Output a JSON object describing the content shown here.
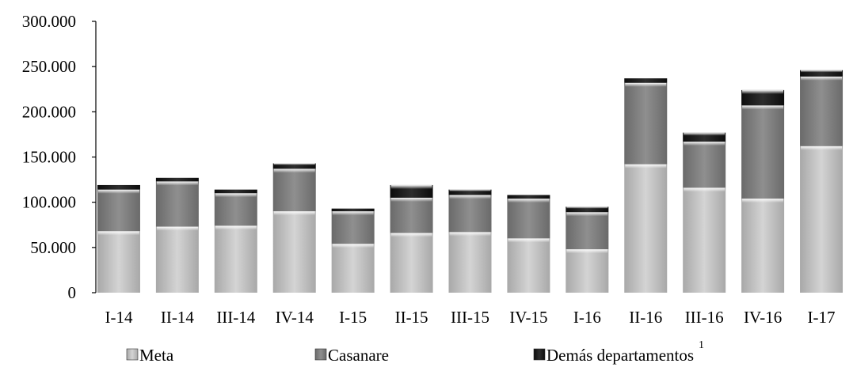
{
  "chart_data": {
    "type": "bar",
    "stacked": true,
    "categories": [
      "I-14",
      "II-14",
      "III-14",
      "IV-14",
      "I-15",
      "II-15",
      "III-15",
      "IV-15",
      "I-16",
      "II-16",
      "III-16",
      "IV-16",
      "I-17"
    ],
    "series": [
      {
        "name": "Meta",
        "values": [
          68000,
          73000,
          74000,
          90000,
          54000,
          66000,
          67000,
          60000,
          48000,
          142000,
          116000,
          104000,
          162000
        ],
        "color": "#c8c8c8"
      },
      {
        "name": "Casanare",
        "values": [
          46000,
          50000,
          36000,
          47000,
          36000,
          39000,
          41000,
          44000,
          41000,
          90000,
          51000,
          103000,
          77000
        ],
        "color": "#7f7f7f"
      },
      {
        "name": "Demás departamentos",
        "values": [
          5000,
          4000,
          4000,
          6000,
          3000,
          14000,
          6000,
          4000,
          6000,
          5000,
          10000,
          17000,
          7000
        ],
        "color": "#1a1a1a"
      }
    ],
    "legend_superscript": "1",
    "yticks": [
      "0",
      "50.000",
      "100.000",
      "150.000",
      "200.000",
      "250.000",
      "300.000"
    ],
    "ylim": [
      0,
      300000
    ],
    "xlabel": "",
    "ylabel": "",
    "title": "",
    "grid": false,
    "legend_position": "bottom"
  }
}
